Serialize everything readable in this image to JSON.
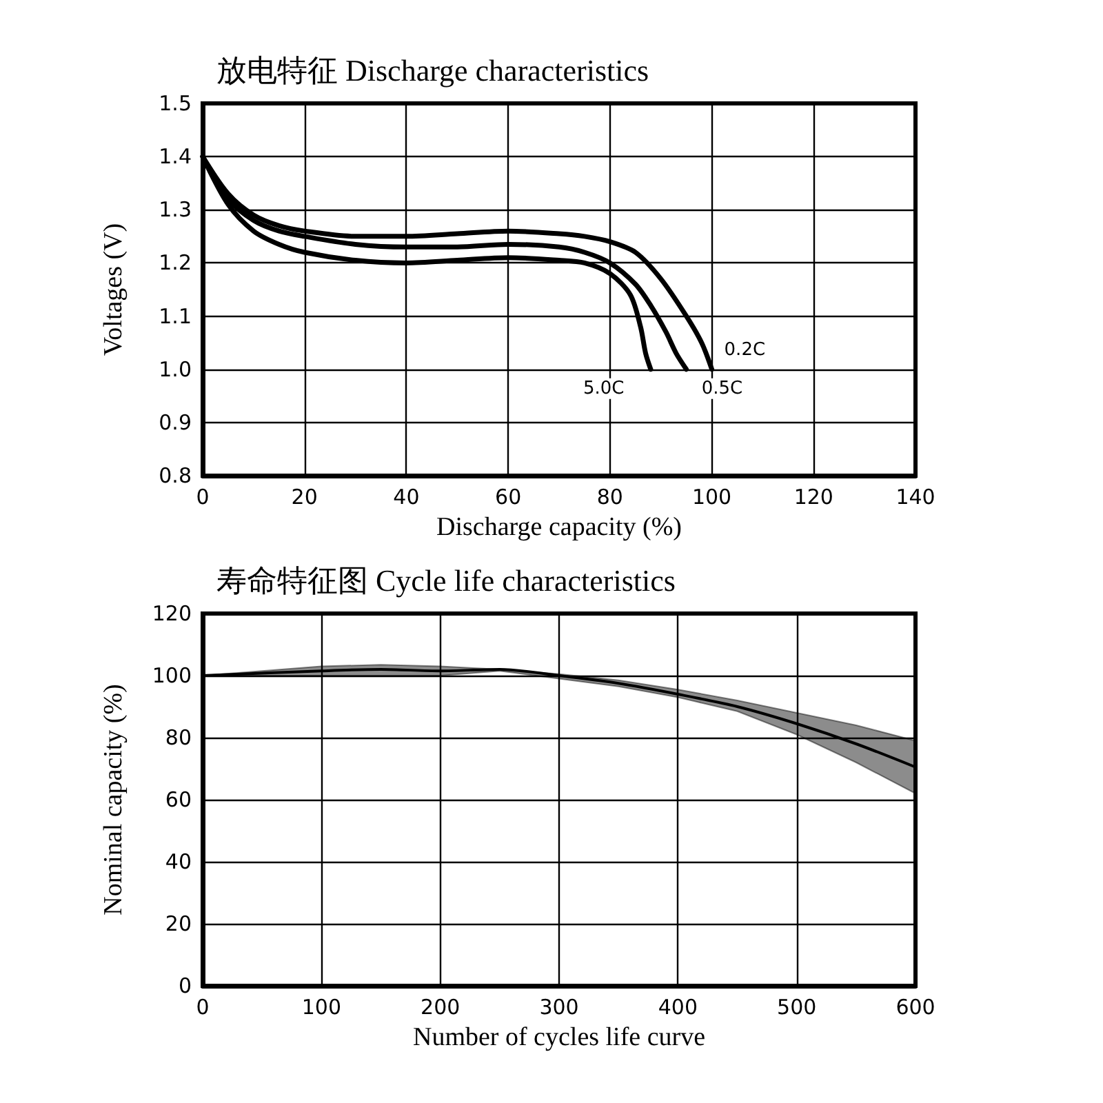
{
  "chart_data": [
    {
      "type": "line",
      "title": "放电特征 Discharge characteristics",
      "xlabel": "Discharge capacity (%)",
      "ylabel": "Voltages (V)",
      "xlim": [
        0,
        140
      ],
      "xticks": [
        0,
        20,
        40,
        60,
        80,
        100,
        120,
        140
      ],
      "ylim": [
        0.8,
        1.5
      ],
      "yticks": [
        0.8,
        0.9,
        {
          "value": 1,
          "label": "1.0"
        },
        1.1,
        1.2,
        1.3,
        1.4,
        1.5
      ],
      "grid": true,
      "legend": false,
      "marker": "none",
      "line_style": "solid",
      "series": [
        {
          "name": "0.2C",
          "color": "#000000",
          "x": [
            0,
            5,
            10,
            15,
            20,
            30,
            40,
            50,
            60,
            70,
            75,
            80,
            85,
            90,
            95,
            98,
            100
          ],
          "values": [
            1.4,
            1.33,
            1.29,
            1.27,
            1.26,
            1.25,
            1.25,
            1.255,
            1.26,
            1.255,
            1.25,
            1.24,
            1.22,
            1.17,
            1.1,
            1.05,
            1.0
          ]
        },
        {
          "name": "0.5C",
          "color": "#000000",
          "x": [
            0,
            5,
            10,
            15,
            20,
            30,
            40,
            50,
            60,
            70,
            75,
            80,
            85,
            88,
            91,
            93,
            95
          ],
          "values": [
            1.4,
            1.32,
            1.28,
            1.26,
            1.25,
            1.235,
            1.23,
            1.23,
            1.235,
            1.23,
            1.22,
            1.2,
            1.16,
            1.12,
            1.07,
            1.03,
            1.0
          ]
        },
        {
          "name": "5.0C",
          "color": "#000000",
          "x": [
            0,
            5,
            10,
            15,
            20,
            30,
            40,
            50,
            60,
            70,
            75,
            80,
            84,
            86,
            87,
            88
          ],
          "values": [
            1.4,
            1.31,
            1.26,
            1.235,
            1.22,
            1.205,
            1.2,
            1.205,
            1.21,
            1.205,
            1.2,
            1.18,
            1.14,
            1.08,
            1.03,
            1.0
          ]
        }
      ]
    },
    {
      "type": "line",
      "title": "寿命特征图 Cycle life characteristics",
      "xlabel": "Number of cycles life curve",
      "ylabel": "Nominal capacity (%)",
      "xlim": [
        0,
        600
      ],
      "xticks": [
        0,
        100,
        200,
        300,
        400,
        500,
        600
      ],
      "ylim": [
        0,
        120
      ],
      "yticks": [
        0,
        20,
        40,
        60,
        80,
        100,
        120
      ],
      "grid": true,
      "legend": false,
      "marker": "none",
      "line_style": "solid",
      "series": [
        {
          "color": "#000000",
          "x": [
            0,
            100,
            150,
            200,
            250,
            300,
            350,
            400,
            450,
            500,
            550,
            600
          ],
          "values": [
            100,
            101.5,
            102,
            101.5,
            102,
            100,
            97.5,
            94,
            90,
            84.5,
            78,
            70.5
          ],
          "lower": [
            100,
            100,
            100,
            100,
            101.5,
            99,
            96.5,
            93,
            88.5,
            81,
            72,
            62
          ],
          "upper": [
            100,
            103,
            103.5,
            103,
            102,
            100.5,
            98.5,
            95.5,
            92,
            88,
            84,
            79
          ]
        }
      ]
    }
  ]
}
